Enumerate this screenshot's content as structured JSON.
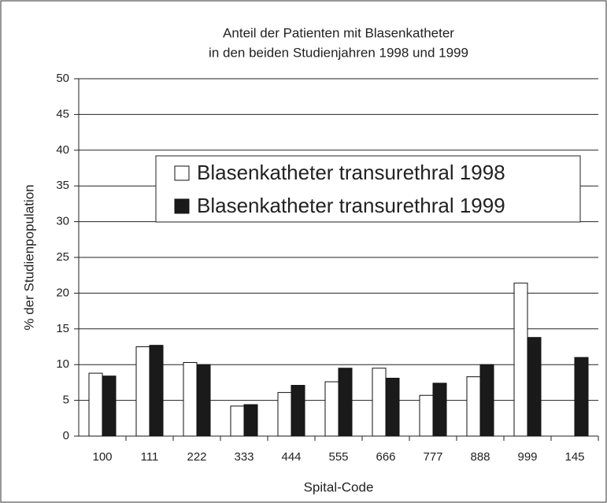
{
  "chart_data": {
    "type": "bar",
    "title": [
      "Anteil der Patienten mit Blasenkatheter",
      "in den beiden Studienjahren 1998 und 1999"
    ],
    "x_label": "Spital-Code",
    "y_label": "% der Studienpopulation",
    "categories": [
      "100",
      "111",
      "222",
      "333",
      "444",
      "555",
      "666",
      "777",
      "888",
      "999",
      "145"
    ],
    "series": [
      {
        "name": "Blasenkatheter transurethral 1998",
        "color": "#ffffff",
        "values": [
          8.8,
          12.5,
          10.3,
          4.2,
          6.1,
          7.6,
          9.5,
          5.7,
          8.3,
          21.4,
          null
        ]
      },
      {
        "name": "Blasenkatheter transurethral 1999",
        "color": "#1a1a1a",
        "values": [
          8.4,
          12.7,
          10.0,
          4.4,
          7.1,
          9.5,
          8.1,
          7.4,
          10.0,
          13.8,
          11.0
        ]
      }
    ],
    "ylim": [
      0,
      50
    ],
    "yticks": [
      0,
      5,
      10,
      15,
      20,
      25,
      30,
      35,
      40,
      45,
      50
    ],
    "grid": true,
    "legend": "top"
  }
}
